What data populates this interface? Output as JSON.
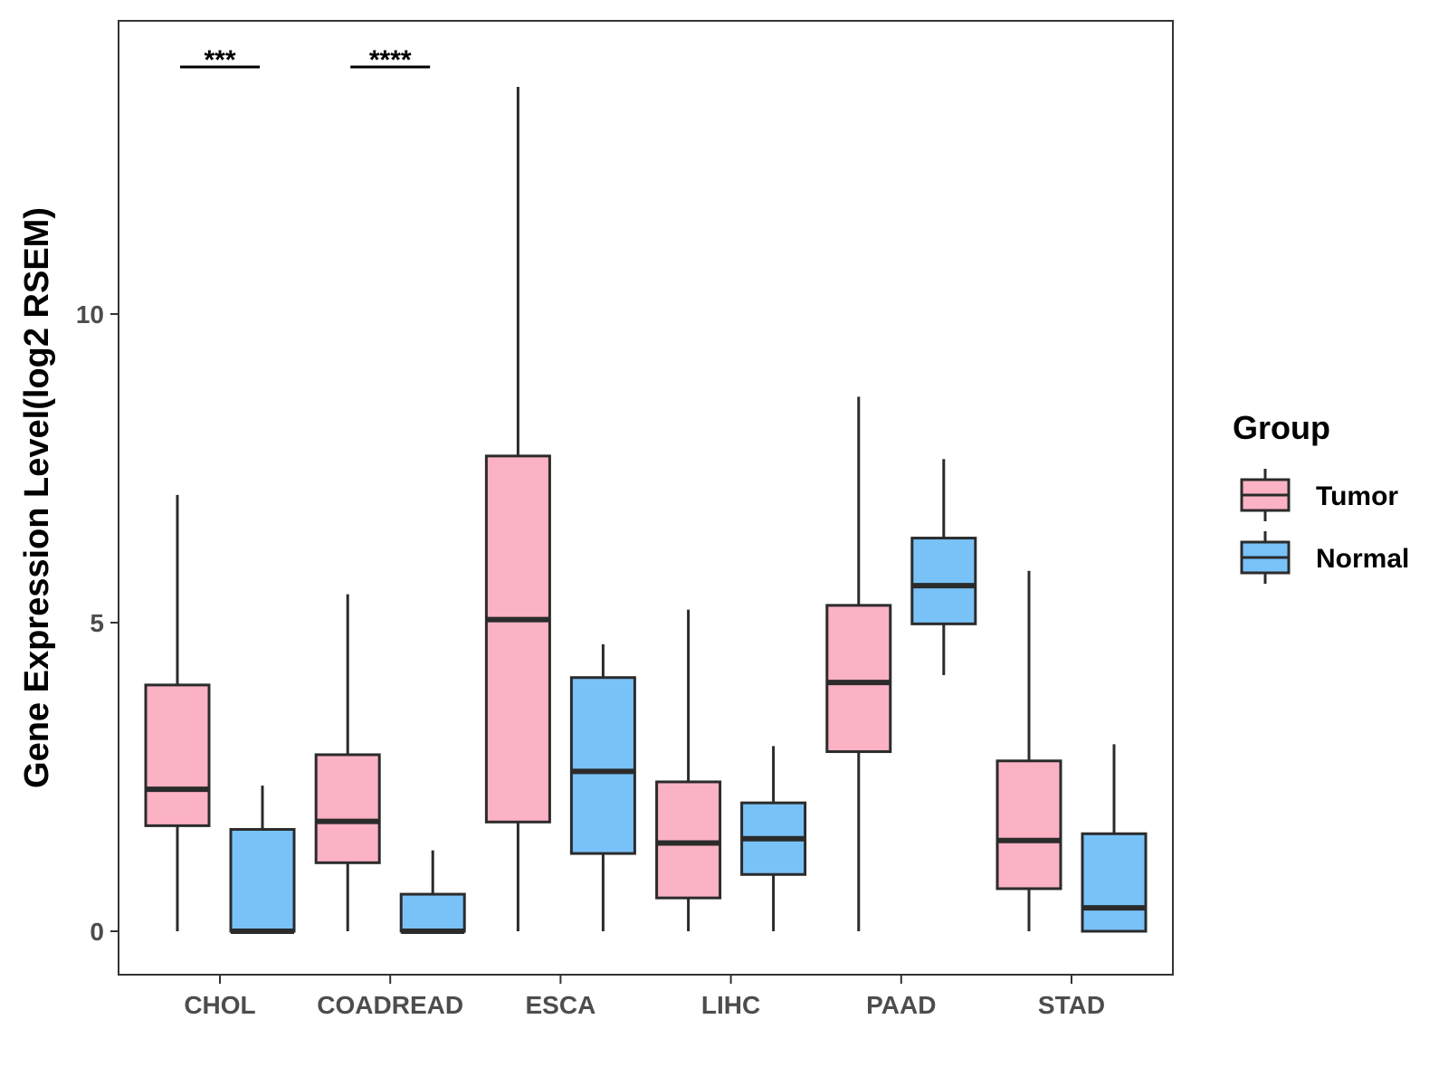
{
  "chart_data": {
    "type": "box",
    "title": "",
    "xlabel": "",
    "ylabel": "Gene Expression Level(log2 RSEM)",
    "ylim": [
      -0.7,
      14.8
    ],
    "yticks": [
      0,
      5,
      10
    ],
    "grid": false,
    "legend": {
      "title": "Group",
      "position": "right",
      "entries": [
        {
          "name": "Tumor",
          "color": "#FBB2C4"
        },
        {
          "name": "Normal",
          "color": "#78C2F8"
        }
      ]
    },
    "categories": [
      "CHOL",
      "COADREAD",
      "ESCA",
      "LIHC",
      "PAAD",
      "STAD"
    ],
    "series": [
      {
        "name": "Tumor",
        "color": "#FBB2C4",
        "boxes": [
          {
            "min": 0,
            "q1": 1.71,
            "median": 2.3,
            "q3": 3.99,
            "max": 7.07
          },
          {
            "min": 0,
            "q1": 1.11,
            "median": 1.78,
            "q3": 2.86,
            "max": 5.46
          },
          {
            "min": 0,
            "q1": 1.77,
            "median": 5.05,
            "q3": 7.7,
            "max": 13.68
          },
          {
            "min": 0,
            "q1": 0.54,
            "median": 1.43,
            "q3": 2.42,
            "max": 5.21
          },
          {
            "min": 0,
            "q1": 2.91,
            "median": 4.03,
            "q3": 5.28,
            "max": 8.66
          },
          {
            "min": 0,
            "q1": 0.69,
            "median": 1.47,
            "q3": 2.76,
            "max": 5.84
          }
        ]
      },
      {
        "name": "Normal",
        "color": "#78C2F8",
        "boxes": [
          {
            "min": 0,
            "q1": 0,
            "median": 0,
            "q3": 1.65,
            "max": 2.36
          },
          {
            "min": 0,
            "q1": 0,
            "median": 0,
            "q3": 0.6,
            "max": 1.31
          },
          {
            "min": 0,
            "q1": 1.26,
            "median": 2.59,
            "q3": 4.11,
            "max": 4.65
          },
          {
            "min": 0,
            "q1": 0.92,
            "median": 1.5,
            "q3": 2.08,
            "max": 3.0
          },
          {
            "min": 4.15,
            "q1": 4.98,
            "median": 5.6,
            "q3": 6.37,
            "max": 7.65
          },
          {
            "min": 0,
            "q1": 0,
            "median": 0.38,
            "q3": 1.58,
            "max": 3.03
          }
        ]
      }
    ],
    "annotations": [
      {
        "category": "CHOL",
        "label": "***"
      },
      {
        "category": "COADREAD",
        "label": "****"
      }
    ]
  }
}
